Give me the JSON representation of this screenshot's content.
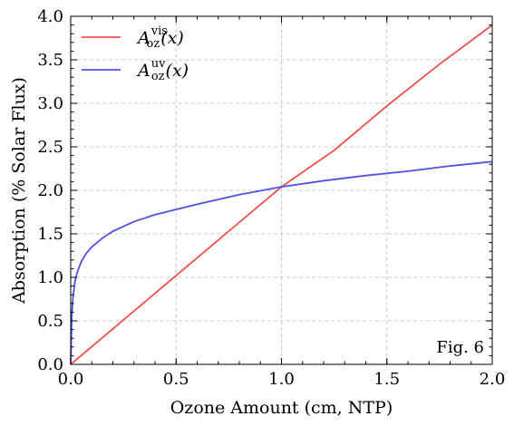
{
  "chart_data": {
    "type": "line",
    "xlabel": "Ozone Amount (cm, NTP)",
    "ylabel": "Absorption (% Solar Flux)",
    "xlim": [
      0.0,
      2.0
    ],
    "ylim": [
      0.0,
      4.0
    ],
    "x_ticks": [
      "0.0",
      "0.5",
      "1.0",
      "1.5",
      "2.0"
    ],
    "y_ticks": [
      "0.0",
      "0.5",
      "1.0",
      "1.5",
      "2.0",
      "2.5",
      "3.0",
      "3.5",
      "4.0"
    ],
    "grid": true,
    "legend_position": "top-left",
    "annotation": "Fig. 6",
    "series": [
      {
        "name": "A_oz^vis(x)",
        "legend_main": "A",
        "legend_sup": "vis",
        "legend_sub": "oz",
        "legend_arg": "(x)",
        "color": "#f05050",
        "x": [
          0.0,
          0.25,
          0.5,
          0.75,
          1.0,
          1.25,
          1.5,
          1.75,
          2.0
        ],
        "y": [
          0.0,
          0.51,
          1.02,
          1.53,
          2.04,
          2.46,
          2.97,
          3.45,
          3.9
        ]
      },
      {
        "name": "A_oz^uv(x)",
        "legend_main": "A",
        "legend_sup": "uv",
        "legend_sub": "oz",
        "legend_arg": "(x)",
        "color": "#5050e6",
        "x": [
          0.0,
          0.005,
          0.01,
          0.02,
          0.03,
          0.05,
          0.075,
          0.1,
          0.15,
          0.2,
          0.3,
          0.4,
          0.5,
          0.6,
          0.8,
          1.0,
          1.2,
          1.4,
          1.6,
          1.8,
          2.0
        ],
        "y": [
          0.0,
          0.55,
          0.75,
          0.95,
          1.05,
          1.18,
          1.28,
          1.35,
          1.45,
          1.53,
          1.64,
          1.72,
          1.78,
          1.84,
          1.95,
          2.04,
          2.11,
          2.17,
          2.22,
          2.28,
          2.33
        ]
      }
    ]
  }
}
